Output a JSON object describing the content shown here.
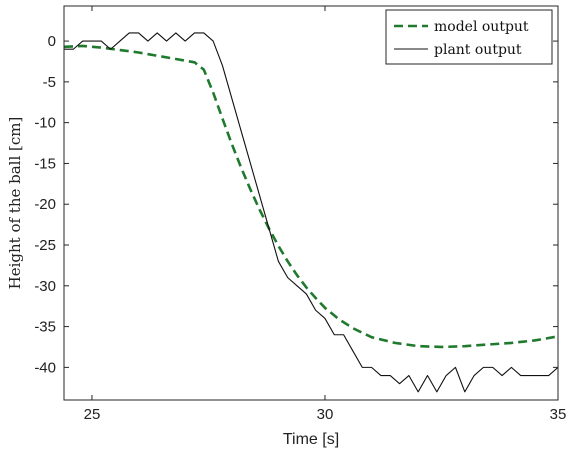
{
  "chart_data": {
    "type": "line",
    "title": "",
    "xlabel": "Time [s]",
    "ylabel": "Height of the ball [cm]",
    "xlim": [
      24.4,
      35
    ],
    "ylim": [
      -44,
      4.3
    ],
    "xticks": [
      25,
      30,
      35
    ],
    "yticks": [
      0,
      -5,
      -10,
      -15,
      -20,
      -25,
      -30,
      -35,
      -40
    ],
    "xtick_labels": [
      "25",
      "30",
      "35"
    ],
    "ytick_labels": [
      "0",
      "-5",
      "-10",
      "-15",
      "-20",
      "-25",
      "-30",
      "-35",
      "-40"
    ],
    "grid": false,
    "legend_position": "top-right",
    "series": [
      {
        "name": "model output",
        "style": "dashed",
        "color": "#1f7a2e",
        "x": [
          24.4,
          24.8,
          25.2,
          25.6,
          26.0,
          26.4,
          26.8,
          27.0,
          27.2,
          27.4,
          27.6,
          27.8,
          28.0,
          28.2,
          28.4,
          28.6,
          28.8,
          29.0,
          29.2,
          29.4,
          29.6,
          29.8,
          30.0,
          30.3,
          30.6,
          31.0,
          31.5,
          32.0,
          32.5,
          33.0,
          33.5,
          34.0,
          34.5,
          35.0
        ],
        "y": [
          -0.7,
          -0.6,
          -0.8,
          -1.1,
          -1.4,
          -1.8,
          -2.2,
          -2.4,
          -2.6,
          -3.5,
          -6.3,
          -9.5,
          -12.6,
          -15.5,
          -18.2,
          -20.7,
          -23.0,
          -25.1,
          -27.0,
          -28.7,
          -30.2,
          -31.5,
          -32.7,
          -34.1,
          -35.2,
          -36.3,
          -37.0,
          -37.4,
          -37.5,
          -37.4,
          -37.2,
          -37.0,
          -36.7,
          -36.2
        ]
      },
      {
        "name": "plant output",
        "style": "solid",
        "color": "#111111",
        "x": [
          24.4,
          24.6,
          24.8,
          25.0,
          25.2,
          25.4,
          25.6,
          25.8,
          26.0,
          26.2,
          26.4,
          26.6,
          26.8,
          27.0,
          27.2,
          27.4,
          27.6,
          27.8,
          28.0,
          28.2,
          28.4,
          28.6,
          28.8,
          29.0,
          29.2,
          29.4,
          29.6,
          29.8,
          30.0,
          30.2,
          30.4,
          30.6,
          30.8,
          31.0,
          31.2,
          31.4,
          31.6,
          31.8,
          32.0,
          32.2,
          32.4,
          32.6,
          32.8,
          33.0,
          33.2,
          33.4,
          33.6,
          33.8,
          34.0,
          34.2,
          34.4,
          34.6,
          34.8,
          35.0
        ],
        "y": [
          -1,
          -1,
          0,
          0,
          0,
          -1,
          0,
          1,
          1,
          0,
          1,
          0,
          1,
          0,
          1,
          1,
          0,
          -3,
          -7,
          -11,
          -15,
          -19,
          -23,
          -27,
          -29,
          -30,
          -31,
          -33,
          -34,
          -36,
          -36,
          -38,
          -40,
          -40,
          -41,
          -41,
          -42,
          -41,
          -43,
          -41,
          -43,
          -41,
          -40,
          -43,
          -41,
          -40,
          -40,
          -41,
          -40,
          -41,
          -41,
          -41,
          -41,
          -40
        ]
      }
    ]
  }
}
